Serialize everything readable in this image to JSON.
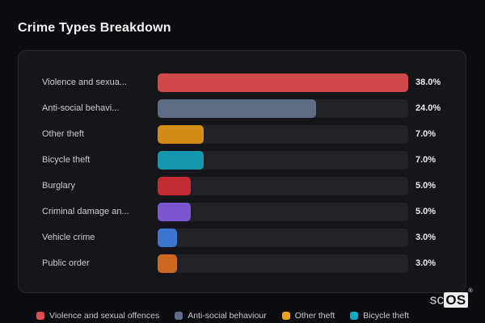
{
  "header": {
    "title": "Crime Types Breakdown"
  },
  "colors": {
    "page_background": "#0b0c10",
    "panel_background": "#15161a",
    "panel_border": "#27282f",
    "bar_track": "#212228",
    "label_text": "#c7cad0",
    "value_text": "#e9eaec",
    "title_text": "#f3f4f6"
  },
  "rows": [
    {
      "label": "Violence and sexua...",
      "value": 38.0,
      "value_label": "38.0%",
      "color": "#d04a4c"
    },
    {
      "label": "Anti-social behavi...",
      "value": 24.0,
      "value_label": "24.0%",
      "color": "#5d6d84"
    },
    {
      "label": "Other theft",
      "value": 7.0,
      "value_label": "7.0%",
      "color": "#d38c16"
    },
    {
      "label": "Bicycle theft",
      "value": 7.0,
      "value_label": "7.0%",
      "color": "#1598ae"
    },
    {
      "label": "Burglary",
      "value": 5.0,
      "value_label": "5.0%",
      "color": "#c12b31"
    },
    {
      "label": "Criminal damage an...",
      "value": 5.0,
      "value_label": "5.0%",
      "color": "#7d57d1"
    },
    {
      "label": "Vehicle crime",
      "value": 3.0,
      "value_label": "3.0%",
      "color": "#3b76d1"
    },
    {
      "label": "Public order",
      "value": 3.0,
      "value_label": "3.0%",
      "color": "#ce6821"
    }
  ],
  "legend": [
    {
      "label": "Violence and sexual offences",
      "color": "#e74c4f"
    },
    {
      "label": "Anti-social behaviour",
      "color": "#5d6f88"
    },
    {
      "label": "Other theft",
      "color": "#f0a312"
    },
    {
      "label": "Bicycle theft",
      "color": "#10a8c2"
    }
  ],
  "watermark": {
    "prefix": "sc",
    "box": "OS",
    "reg": "®"
  },
  "chart_data": {
    "type": "bar",
    "orientation": "horizontal",
    "title": "Crime Types Breakdown",
    "categories": [
      "Violence and sexual offences",
      "Anti-social behaviour",
      "Other theft",
      "Bicycle theft",
      "Burglary",
      "Criminal damage an...",
      "Vehicle crime",
      "Public order"
    ],
    "values": [
      38.0,
      24.0,
      7.0,
      7.0,
      5.0,
      5.0,
      3.0,
      3.0
    ],
    "value_labels": [
      "38.0%",
      "24.0%",
      "7.0%",
      "7.0%",
      "5.0%",
      "5.0%",
      "3.0%",
      "3.0%"
    ],
    "unit": "%",
    "xlabel": "",
    "ylabel": "",
    "bar_scale_max": 38.0,
    "grid": false,
    "legend_position": "bottom",
    "legend_entries": [
      "Violence and sexual offences",
      "Anti-social behaviour",
      "Other theft",
      "Bicycle theft"
    ],
    "series_colors": [
      "#d04a4c",
      "#5d6d84",
      "#d38c16",
      "#1598ae",
      "#c12b31",
      "#7d57d1",
      "#3b76d1",
      "#ce6821"
    ]
  }
}
